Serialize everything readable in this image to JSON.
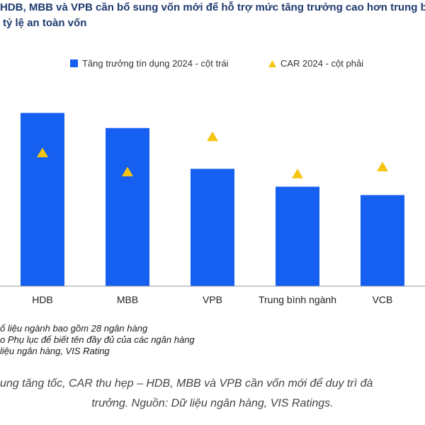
{
  "title_lines": [
    "HDB, MBB và VPB cần bổ sung vốn mới để hỗ trợ mức tăng trưởng cao hơn trung b",
    "tỷ lệ an toàn vốn"
  ],
  "notes": [
    "ố liệu ngành bao gồm 28 ngân hàng",
    "o Phụ lục để biết tên đầy đủ của các ngân hàng",
    "liệu ngân hàng, VIS Rating"
  ],
  "caption_lines": [
    "ung tăng tốc, CAR thu hẹp – HDB, MBB và VPB cần vốn mới để duy trì đà",
    "trưởng. Nguồn: Dữ liệu ngân hàng, VIS Ratings."
  ],
  "colors": {
    "bar": "#1560f0",
    "marker": "#f5c40f",
    "axis": "#9a9a9a",
    "title": "#1f3a6e"
  },
  "chart_data": {
    "type": "bar",
    "categories": [
      "HDB",
      "MBB",
      "VPB",
      "Trung bình ngành",
      "VCB"
    ],
    "series": [
      {
        "name": "Tăng trưởng tín dụng 2024 - cột trái",
        "kind": "bar",
        "axis": "left",
        "values": [
          31,
          28.3,
          21,
          17.8,
          16.3
        ]
      },
      {
        "name": "CAR 2024 - cột phải",
        "kind": "marker",
        "axis": "right",
        "values": [
          13.3,
          11.4,
          14.9,
          11.2,
          11.9
        ]
      }
    ],
    "ylim_left": [
      0,
      36
    ],
    "ylim_right": [
      0,
      20
    ],
    "grid": false,
    "legend": "top"
  }
}
